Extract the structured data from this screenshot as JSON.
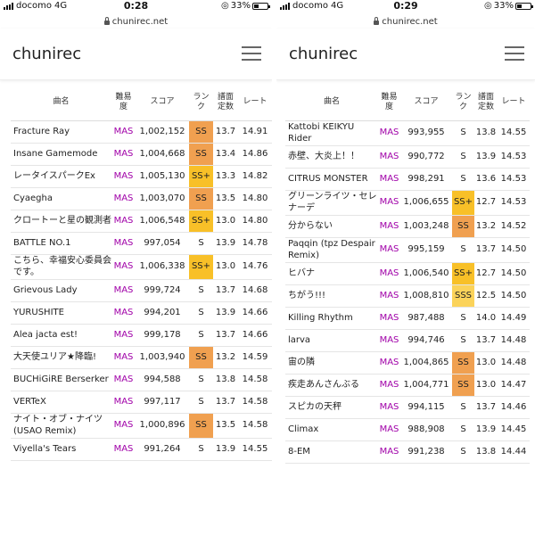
{
  "colors": {
    "diff_mas": "#a000a8",
    "rank_ss": "#f0a050",
    "rank_ssplus": "#f8c028",
    "rank_sss": "#fbd35a"
  },
  "left": {
    "status": {
      "carrier": "docomo",
      "network": "4G",
      "time": "0:28",
      "battery": "33%",
      "url": "chunirec.net"
    },
    "app": {
      "brand": "chunirec",
      "menu_icon": "hamburger-icon"
    },
    "headers": {
      "title": "曲名",
      "diff": "難易度",
      "score": "スコア",
      "rank": "ランク",
      "const": "譜面定数",
      "rate": "レート"
    },
    "rows": [
      {
        "title": "Fracture Ray",
        "diff": "MAS",
        "score": "1,002,152",
        "rank": "SS",
        "const": "13.7",
        "rate": "14.91"
      },
      {
        "title": "Insane Gamemode",
        "diff": "MAS",
        "score": "1,004,668",
        "rank": "SS",
        "const": "13.4",
        "rate": "14.86"
      },
      {
        "title": "レータイスパークEx",
        "diff": "MAS",
        "score": "1,005,130",
        "rank": "SS+",
        "const": "13.3",
        "rate": "14.82"
      },
      {
        "title": "Cyaegha",
        "diff": "MAS",
        "score": "1,003,070",
        "rank": "SS",
        "const": "13.5",
        "rate": "14.80"
      },
      {
        "title": "クロートーと星の観測者",
        "diff": "MAS",
        "score": "1,006,548",
        "rank": "SS+",
        "const": "13.0",
        "rate": "14.80"
      },
      {
        "title": "BATTLE NO.1",
        "diff": "MAS",
        "score": "997,054",
        "rank": "S",
        "const": "13.9",
        "rate": "14.78"
      },
      {
        "title": "こちら、幸福安心委員会です。",
        "diff": "MAS",
        "score": "1,006,338",
        "rank": "SS+",
        "const": "13.0",
        "rate": "14.76"
      },
      {
        "title": "Grievous Lady",
        "diff": "MAS",
        "score": "999,724",
        "rank": "S",
        "const": "13.7",
        "rate": "14.68"
      },
      {
        "title": "YURUSHITE",
        "diff": "MAS",
        "score": "994,201",
        "rank": "S",
        "const": "13.9",
        "rate": "14.66"
      },
      {
        "title": "Alea jacta est!",
        "diff": "MAS",
        "score": "999,178",
        "rank": "S",
        "const": "13.7",
        "rate": "14.66"
      },
      {
        "title": "大天使ユリア★降臨!",
        "diff": "MAS",
        "score": "1,003,940",
        "rank": "SS",
        "const": "13.2",
        "rate": "14.59"
      },
      {
        "title": "BUCHiGiRE Berserker",
        "diff": "MAS",
        "score": "994,588",
        "rank": "S",
        "const": "13.8",
        "rate": "14.58"
      },
      {
        "title": "VERTeX",
        "diff": "MAS",
        "score": "997,117",
        "rank": "S",
        "const": "13.7",
        "rate": "14.58"
      },
      {
        "title": "ナイト・オブ・ナイツ (USAO Remix)",
        "diff": "MAS",
        "score": "1,000,896",
        "rank": "SS",
        "const": "13.5",
        "rate": "14.58"
      },
      {
        "title": "Viyella's Tears",
        "diff": "MAS",
        "score": "991,264",
        "rank": "S",
        "const": "13.9",
        "rate": "14.55"
      }
    ]
  },
  "right": {
    "status": {
      "carrier": "docomo",
      "network": "4G",
      "time": "0:29",
      "battery": "33%",
      "url": "chunirec.net"
    },
    "app": {
      "brand": "chunirec",
      "menu_icon": "hamburger-icon"
    },
    "headers": {
      "title": "曲名",
      "diff": "難易度",
      "score": "スコア",
      "rank": "ランク",
      "const": "譜面定数",
      "rate": "レート"
    },
    "rows": [
      {
        "title": "Kattobi KEIKYU Rider",
        "diff": "MAS",
        "score": "993,955",
        "rank": "S",
        "const": "13.8",
        "rate": "14.55"
      },
      {
        "title": "赤壁、大炎上！！",
        "diff": "MAS",
        "score": "990,772",
        "rank": "S",
        "const": "13.9",
        "rate": "14.53"
      },
      {
        "title": "CITRUS MONSTER",
        "diff": "MAS",
        "score": "998,291",
        "rank": "S",
        "const": "13.6",
        "rate": "14.53"
      },
      {
        "title": "グリーンライツ・セレナーデ",
        "diff": "MAS",
        "score": "1,006,655",
        "rank": "SS+",
        "const": "12.7",
        "rate": "14.53"
      },
      {
        "title": "分からない",
        "diff": "MAS",
        "score": "1,003,248",
        "rank": "SS",
        "const": "13.2",
        "rate": "14.52"
      },
      {
        "title": "Paqqin (tpz Despair Remix)",
        "diff": "MAS",
        "score": "995,159",
        "rank": "S",
        "const": "13.7",
        "rate": "14.50"
      },
      {
        "title": "ヒバナ",
        "diff": "MAS",
        "score": "1,006,540",
        "rank": "SS+",
        "const": "12.7",
        "rate": "14.50"
      },
      {
        "title": "ちがう!!!",
        "diff": "MAS",
        "score": "1,008,810",
        "rank": "SSS",
        "const": "12.5",
        "rate": "14.50"
      },
      {
        "title": "Killing Rhythm",
        "diff": "MAS",
        "score": "987,488",
        "rank": "S",
        "const": "14.0",
        "rate": "14.49"
      },
      {
        "title": "larva",
        "diff": "MAS",
        "score": "994,746",
        "rank": "S",
        "const": "13.7",
        "rate": "14.48"
      },
      {
        "title": "宙の隣",
        "diff": "MAS",
        "score": "1,004,865",
        "rank": "SS",
        "const": "13.0",
        "rate": "14.48"
      },
      {
        "title": "疾走あんさんぶる",
        "diff": "MAS",
        "score": "1,004,771",
        "rank": "SS",
        "const": "13.0",
        "rate": "14.47"
      },
      {
        "title": "スピカの天秤",
        "diff": "MAS",
        "score": "994,115",
        "rank": "S",
        "const": "13.7",
        "rate": "14.46"
      },
      {
        "title": "Climax",
        "diff": "MAS",
        "score": "988,908",
        "rank": "S",
        "const": "13.9",
        "rate": "14.45"
      },
      {
        "title": "8-EM",
        "diff": "MAS",
        "score": "991,238",
        "rank": "S",
        "const": "13.8",
        "rate": "14.44"
      }
    ]
  }
}
